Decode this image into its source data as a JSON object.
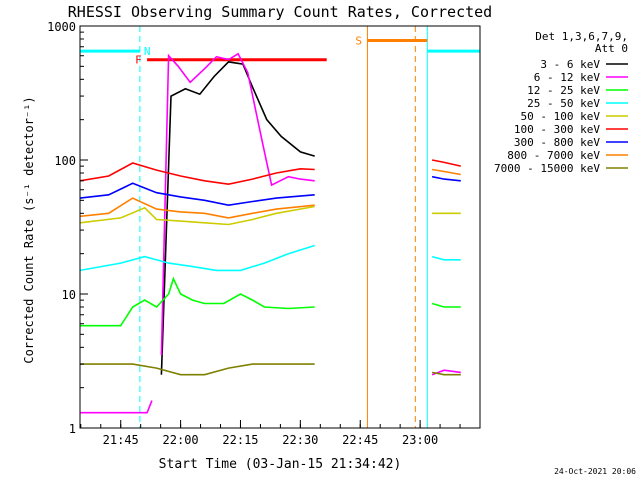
{
  "chart_data": {
    "type": "line",
    "title": "RHESSI Observing Summary Count Rates, Corrected",
    "xlabel": "Start Time (03-Jan-15 21:34:42)",
    "ylabel": "Corrected Count Rate (s⁻¹ detector⁻¹)",
    "y_scale": "log",
    "ylim": [
      1,
      1000
    ],
    "xlim": [
      21.58,
      23.25
    ],
    "x_ticks": [
      {
        "value": 21.75,
        "label": "21:45"
      },
      {
        "value": 22.0,
        "label": "22:00"
      },
      {
        "value": 22.25,
        "label": "22:15"
      },
      {
        "value": 22.5,
        "label": "22:30"
      },
      {
        "value": 22.75,
        "label": "22:45"
      },
      {
        "value": 23.0,
        "label": "23:00"
      }
    ],
    "y_ticks": [
      {
        "value": 1,
        "label": "1"
      },
      {
        "value": 10,
        "label": "10"
      },
      {
        "value": 100,
        "label": "100"
      },
      {
        "value": 1000,
        "label": "1000"
      }
    ],
    "legend_header": [
      "Det 1,3,6,7,9,",
      "Att 0"
    ],
    "legend_position": "right",
    "footer_date": "24-Oct-2021 20:06",
    "series": [
      {
        "name": "3 - 6 keV",
        "color": "#000000",
        "segments": [
          [
            [
              21.92,
              2.5
            ],
            [
              21.96,
              300
            ],
            [
              22.02,
              340
            ],
            [
              22.08,
              310
            ],
            [
              22.14,
              420
            ],
            [
              22.2,
              540
            ],
            [
              22.26,
              520
            ],
            [
              22.3,
              350
            ],
            [
              22.36,
              200
            ],
            [
              22.42,
              150
            ],
            [
              22.5,
              115
            ],
            [
              22.56,
              107
            ]
          ]
        ]
      },
      {
        "name": "6 - 12 keV",
        "color": "#ff00ff",
        "segments": [
          [
            [
              21.58,
              1.3
            ],
            [
              21.86,
              1.3
            ],
            [
              21.88,
              1.6
            ]
          ],
          [
            [
              21.92,
              3.5
            ],
            [
              21.95,
              600
            ],
            [
              21.99,
              500
            ],
            [
              22.04,
              380
            ],
            [
              22.1,
              480
            ],
            [
              22.15,
              590
            ],
            [
              22.2,
              560
            ],
            [
              22.24,
              620
            ],
            [
              22.28,
              450
            ],
            [
              22.34,
              140
            ],
            [
              22.38,
              65
            ],
            [
              22.45,
              75
            ],
            [
              22.5,
              72
            ],
            [
              22.56,
              70
            ]
          ],
          [
            [
              23.05,
              2.5
            ],
            [
              23.1,
              2.7
            ],
            [
              23.17,
              2.6
            ]
          ]
        ]
      },
      {
        "name": "12 - 25 keV",
        "color": "#00ff00",
        "segments": [
          [
            [
              21.58,
              5.8
            ],
            [
              21.75,
              5.8
            ],
            [
              21.8,
              8
            ],
            [
              21.85,
              9
            ],
            [
              21.9,
              8
            ],
            [
              21.95,
              10
            ],
            [
              21.97,
              13
            ],
            [
              22.0,
              10
            ],
            [
              22.05,
              9
            ],
            [
              22.1,
              8.5
            ],
            [
              22.18,
              8.5
            ],
            [
              22.25,
              10
            ],
            [
              22.3,
              9
            ],
            [
              22.35,
              8
            ],
            [
              22.45,
              7.8
            ],
            [
              22.56,
              8
            ]
          ],
          [
            [
              23.05,
              8.5
            ],
            [
              23.1,
              8
            ],
            [
              23.17,
              8
            ]
          ]
        ]
      },
      {
        "name": "25 - 50 keV",
        "color": "#00ffff",
        "segments": [
          [
            [
              21.58,
              15
            ],
            [
              21.75,
              17
            ],
            [
              21.85,
              19
            ],
            [
              21.95,
              17
            ],
            [
              22.05,
              16
            ],
            [
              22.15,
              15
            ],
            [
              22.25,
              15
            ],
            [
              22.35,
              17
            ],
            [
              22.45,
              20
            ],
            [
              22.56,
              23
            ]
          ],
          [
            [
              23.05,
              19
            ],
            [
              23.1,
              18
            ],
            [
              23.17,
              18
            ]
          ]
        ]
      },
      {
        "name": "50 - 100 keV",
        "color": "#cccc00",
        "segments": [
          [
            [
              21.58,
              34
            ],
            [
              21.75,
              37
            ],
            [
              21.85,
              44
            ],
            [
              21.9,
              36
            ],
            [
              22.0,
              35
            ],
            [
              22.1,
              34
            ],
            [
              22.2,
              33
            ],
            [
              22.3,
              36
            ],
            [
              22.4,
              40
            ],
            [
              22.56,
              45
            ]
          ],
          [
            [
              23.05,
              40
            ],
            [
              23.1,
              40
            ],
            [
              23.17,
              40
            ]
          ]
        ]
      },
      {
        "name": "100 - 300 keV",
        "color": "#ff0000",
        "segments": [
          [
            [
              21.58,
              70
            ],
            [
              21.7,
              76
            ],
            [
              21.8,
              95
            ],
            [
              21.9,
              84
            ],
            [
              22.0,
              76
            ],
            [
              22.1,
              70
            ],
            [
              22.2,
              66
            ],
            [
              22.3,
              72
            ],
            [
              22.4,
              80
            ],
            [
              22.5,
              86
            ],
            [
              22.56,
              85
            ]
          ],
          [
            [
              23.05,
              100
            ],
            [
              23.1,
              96
            ],
            [
              23.17,
              90
            ]
          ]
        ]
      },
      {
        "name": "300 - 800 keV",
        "color": "#0000ff",
        "segments": [
          [
            [
              21.58,
              52
            ],
            [
              21.7,
              55
            ],
            [
              21.8,
              67
            ],
            [
              21.9,
              57
            ],
            [
              22.0,
              53
            ],
            [
              22.1,
              50
            ],
            [
              22.2,
              46
            ],
            [
              22.3,
              49
            ],
            [
              22.4,
              52
            ],
            [
              22.56,
              55
            ]
          ],
          [
            [
              23.05,
              75
            ],
            [
              23.1,
              72
            ],
            [
              23.17,
              70
            ]
          ]
        ]
      },
      {
        "name": "800 - 7000 keV",
        "color": "#ff8000",
        "segments": [
          [
            [
              21.58,
              38
            ],
            [
              21.7,
              40
            ],
            [
              21.8,
              52
            ],
            [
              21.9,
              43
            ],
            [
              22.0,
              41
            ],
            [
              22.1,
              40
            ],
            [
              22.2,
              37
            ],
            [
              22.3,
              40
            ],
            [
              22.4,
              43
            ],
            [
              22.56,
              46
            ]
          ],
          [
            [
              23.05,
              85
            ],
            [
              23.1,
              82
            ],
            [
              23.17,
              78
            ]
          ]
        ]
      },
      {
        "name": "7000 - 15000 keV",
        "color": "#808000",
        "segments": [
          [
            [
              21.58,
              3
            ],
            [
              21.7,
              3
            ],
            [
              21.8,
              3
            ],
            [
              21.9,
              2.8
            ],
            [
              22.0,
              2.5
            ],
            [
              22.1,
              2.5
            ],
            [
              22.2,
              2.8
            ],
            [
              22.3,
              3
            ],
            [
              22.4,
              3
            ],
            [
              22.56,
              3
            ]
          ],
          [
            [
              23.05,
              2.6
            ],
            [
              23.1,
              2.5
            ],
            [
              23.17,
              2.5
            ]
          ]
        ]
      }
    ],
    "bands": [
      {
        "label": "N",
        "color": "#00ffff",
        "y": 650,
        "from": 21.58,
        "to": 21.83
      },
      {
        "label": "S",
        "color": "#ff8000",
        "y": 780,
        "from": 22.78,
        "to": 23.03
      },
      {
        "label": "",
        "color": "#00ffff",
        "y": 650,
        "from": 23.03,
        "to": 23.25
      },
      {
        "label": "F",
        "color": "#ff0000",
        "y": 560,
        "from": 21.86,
        "to": 22.61
      }
    ],
    "vlines": [
      {
        "x": 21.58,
        "color": "#00ffff",
        "dashed": false
      },
      {
        "x": 21.83,
        "color": "#00ffff",
        "dashed": true
      },
      {
        "x": 22.78,
        "color": "#ff8000",
        "dashed": false
      },
      {
        "x": 23.03,
        "color": "#00ffff",
        "dashed": false
      },
      {
        "x": 22.98,
        "color": "#ff8000",
        "dashed": true
      },
      {
        "x": 23.25,
        "color": "#00ffff",
        "dashed": true
      }
    ]
  }
}
